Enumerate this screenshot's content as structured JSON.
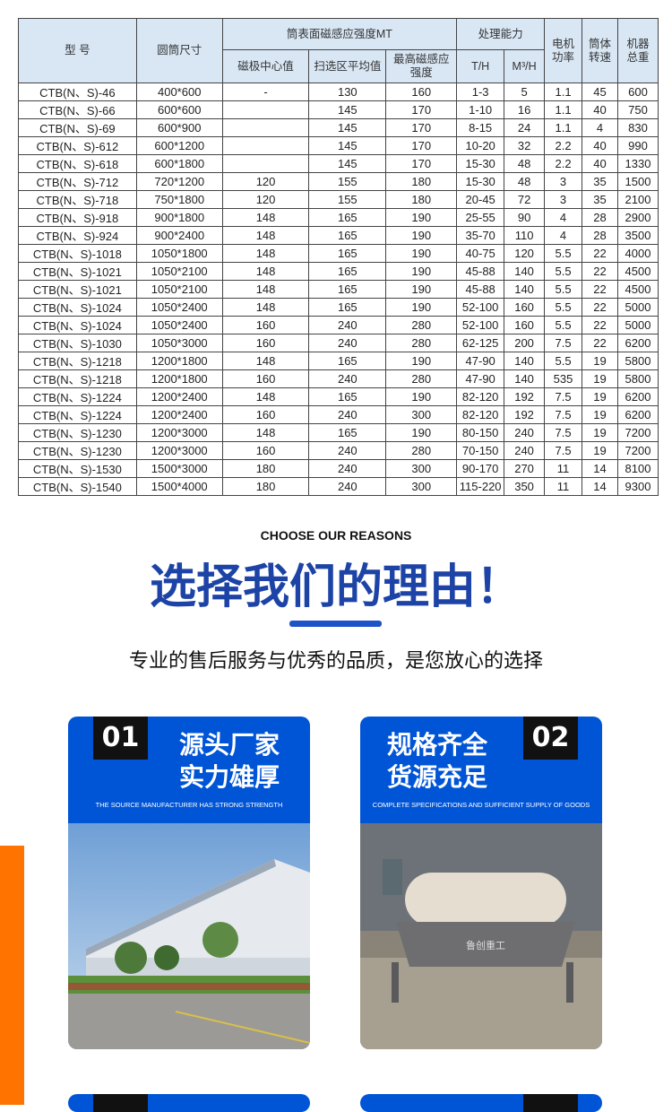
{
  "table": {
    "headers": {
      "model": "型 号",
      "size": "圆筒尺寸",
      "field": "筒表面磁感应强度MT",
      "center": "磁极中心值",
      "avg": "扫选区平均值",
      "max": "最高磁感应强度",
      "capacity": "处理能力",
      "th": "T/H",
      "m3h": "M³/H",
      "power": "电机功率",
      "speed": "筒体转速",
      "weight": "机器总重"
    },
    "rows": [
      [
        "CTB(N、S)-46",
        "400*600",
        "-",
        "130",
        "160",
        "1-3",
        "5",
        "1.1",
        "45",
        "600"
      ],
      [
        "CTB(N、S)-66",
        "600*600",
        "",
        "145",
        "170",
        "1-10",
        "16",
        "1.1",
        "40",
        "750"
      ],
      [
        "CTB(N、S)-69",
        "600*900",
        "",
        "145",
        "170",
        "8-15",
        "24",
        "1.1",
        "4",
        "830"
      ],
      [
        "CTB(N、S)-612",
        "600*1200",
        "",
        "145",
        "170",
        "10-20",
        "32",
        "2.2",
        "40",
        "990"
      ],
      [
        "CTB(N、S)-618",
        "600*1800",
        "",
        "145",
        "170",
        "15-30",
        "48",
        "2.2",
        "40",
        "1330"
      ],
      [
        "CTB(N、S)-712",
        "720*1200",
        "120",
        "155",
        "180",
        "15-30",
        "48",
        "3",
        "35",
        "1500"
      ],
      [
        "CTB(N、S)-718",
        "750*1800",
        "120",
        "155",
        "180",
        "20-45",
        "72",
        "3",
        "35",
        "2100"
      ],
      [
        "CTB(N、S)-918",
        "900*1800",
        "148",
        "165",
        "190",
        "25-55",
        "90",
        "4",
        "28",
        "2900"
      ],
      [
        "CTB(N、S)-924",
        "900*2400",
        "148",
        "165",
        "190",
        "35-70",
        "110",
        "4",
        "28",
        "3500"
      ],
      [
        "CTB(N、S)-1018",
        "1050*1800",
        "148",
        "165",
        "190",
        "40-75",
        "120",
        "5.5",
        "22",
        "4000"
      ],
      [
        "CTB(N、S)-1021",
        "1050*2100",
        "148",
        "165",
        "190",
        "45-88",
        "140",
        "5.5",
        "22",
        "4500"
      ],
      [
        "CTB(N、S)-1021",
        "1050*2100",
        "148",
        "165",
        "190",
        "45-88",
        "140",
        "5.5",
        "22",
        "4500"
      ],
      [
        "CTB(N、S)-1024",
        "1050*2400",
        "148",
        "165",
        "190",
        "52-100",
        "160",
        "5.5",
        "22",
        "5000"
      ],
      [
        "CTB(N、S)-1024",
        "1050*2400",
        "160",
        "240",
        "280",
        "52-100",
        "160",
        "5.5",
        "22",
        "5000"
      ],
      [
        "CTB(N、S)-1030",
        "1050*3000",
        "160",
        "240",
        "280",
        "62-125",
        "200",
        "7.5",
        "22",
        "6200"
      ],
      [
        "CTB(N、S)-1218",
        "1200*1800",
        "148",
        "165",
        "190",
        "47-90",
        "140",
        "5.5",
        "19",
        "5800"
      ],
      [
        "CTB(N、S)-1218",
        "1200*1800",
        "160",
        "240",
        "280",
        "47-90",
        "140",
        "535",
        "19",
        "5800"
      ],
      [
        "CTB(N、S)-1224",
        "1200*2400",
        "148",
        "165",
        "190",
        "82-120",
        "192",
        "7.5",
        "19",
        "6200"
      ],
      [
        "CTB(N、S)-1224",
        "1200*2400",
        "160",
        "240",
        "300",
        "82-120",
        "192",
        "7.5",
        "19",
        "6200"
      ],
      [
        "CTB(N、S)-1230",
        "1200*3000",
        "148",
        "165",
        "190",
        "80-150",
        "240",
        "7.5",
        "19",
        "7200"
      ],
      [
        "CTB(N、S)-1230",
        "1200*3000",
        "160",
        "240",
        "280",
        "70-150",
        "240",
        "7.5",
        "19",
        "7200"
      ],
      [
        "CTB(N、S)-1530",
        "1500*3000",
        "180",
        "240",
        "300",
        "90-170",
        "270",
        "11",
        "14",
        "8100"
      ],
      [
        "CTB(N、S)-1540",
        "1500*4000",
        "180",
        "240",
        "300",
        "115-220",
        "350",
        "11",
        "14",
        "9300"
      ]
    ]
  },
  "reasons": {
    "eyebrow": "CHOOSE OUR REASONS",
    "title": "选择我们的理由！",
    "subtitle": "专业的售后服务与优秀的品质，是您放心的选择"
  },
  "cards": [
    {
      "num": "01",
      "line1": "源头厂家",
      "line2": "实力雄厚",
      "en": "THE SOURCE MANUFACTURER HAS STRONG STRENGTH",
      "photo_text": ""
    },
    {
      "num": "02",
      "line1": "规格齐全",
      "line2": "货源充足",
      "en": "COMPLETE SPECIFICATIONS AND SUFFICIENT SUPPLY OF GOODS",
      "photo_text": "鲁创重工"
    }
  ],
  "colors": {
    "brand_blue": "#0055d6",
    "title_blue": "#1d43a6",
    "accent_orange": "#ff7300"
  }
}
